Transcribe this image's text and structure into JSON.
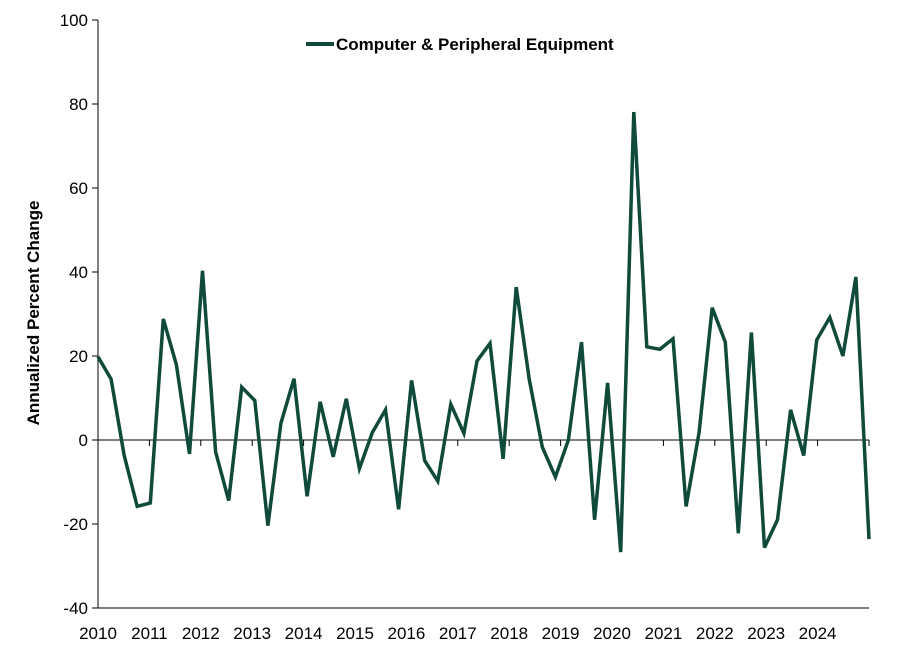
{
  "chart_data": {
    "type": "line",
    "title": "",
    "xlabel": "",
    "ylabel": "Annualized Percent Change",
    "ylim": [
      -40,
      100
    ],
    "yticks": [
      -40,
      -20,
      0,
      20,
      40,
      60,
      80,
      100
    ],
    "xlim": [
      2010,
      2024.75
    ],
    "xtick_labels": [
      "2010",
      "2011",
      "2012",
      "2013",
      "2014",
      "2015",
      "2016",
      "2017",
      "2018",
      "2019",
      "2020",
      "2021",
      "2022",
      "2023",
      "2024"
    ],
    "legend_position": "top-center",
    "grid": false,
    "color": "#0f4a3a",
    "series": [
      {
        "name": "Computer & Peripheral Equipment",
        "x": [
          2010.0,
          2010.25,
          2010.5,
          2010.75,
          2011.0,
          2011.25,
          2011.5,
          2011.75,
          2012.0,
          2012.25,
          2012.5,
          2012.75,
          2013.0,
          2013.25,
          2013.5,
          2013.75,
          2014.0,
          2014.25,
          2014.5,
          2014.75,
          2015.0,
          2015.25,
          2015.5,
          2015.75,
          2016.0,
          2016.25,
          2016.5,
          2016.75,
          2017.0,
          2017.25,
          2017.5,
          2017.75,
          2018.0,
          2018.25,
          2018.5,
          2018.75,
          2019.0,
          2019.25,
          2019.5,
          2019.75,
          2020.0,
          2020.25,
          2020.5,
          2020.75,
          2021.0,
          2021.25,
          2021.5,
          2021.75,
          2022.0,
          2022.25,
          2022.5,
          2022.75,
          2023.0,
          2023.25,
          2023.5,
          2023.75,
          2024.0,
          2024.25,
          2024.5,
          2024.75
        ],
        "values": [
          19.8,
          14.5,
          -3.6,
          -15.8,
          -15.0,
          28.8,
          17.9,
          -3.3,
          40.3,
          -2.8,
          -14.4,
          12.6,
          9.4,
          -20.4,
          4.0,
          14.6,
          -13.4,
          9.1,
          -4.0,
          9.8,
          -6.8,
          1.8,
          7.2,
          -16.5,
          14.2,
          -4.9,
          -9.8,
          8.5,
          1.6,
          18.8,
          23.0,
          -4.5,
          36.4,
          14.5,
          -1.7,
          -8.8,
          0.0,
          23.3,
          -19.0,
          13.6,
          -26.7,
          78.1,
          22.2,
          21.6,
          24.1,
          -15.8,
          1.8,
          31.5,
          23.3,
          -22.2,
          25.6,
          -25.6,
          -19.0,
          7.2,
          -3.7,
          23.8,
          29.2,
          20.0,
          38.8,
          -23.6
        ]
      }
    ]
  }
}
